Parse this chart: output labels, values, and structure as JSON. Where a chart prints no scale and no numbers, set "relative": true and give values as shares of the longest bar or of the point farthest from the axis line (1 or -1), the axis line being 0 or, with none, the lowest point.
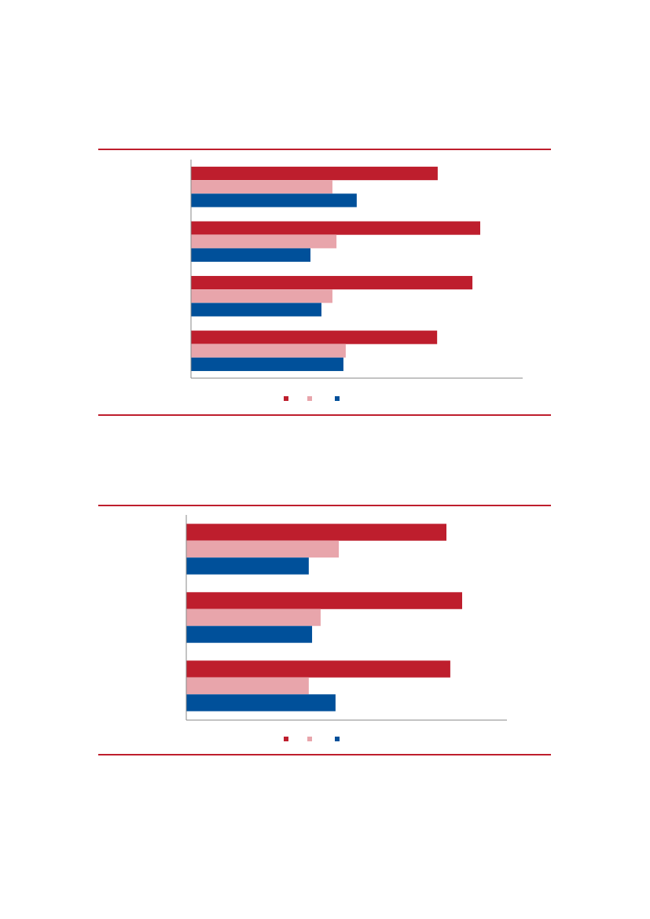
{
  "chart_data": [
    {
      "type": "bar",
      "orientation": "horizontal",
      "relative": true,
      "categories": [
        null,
        null,
        null,
        null
      ],
      "series": [
        {
          "color": "#be1e2d",
          "values": [
            0.853,
            1,
            0.973,
            0.851
          ]
        },
        {
          "color": "#e8a5ab",
          "values": [
            0.489,
            0.503,
            0.489,
            0.535
          ]
        },
        {
          "color": "#00509a",
          "values": [
            0.573,
            0.413,
            0.451,
            0.527
          ]
        }
      ]
    },
    {
      "type": "bar",
      "orientation": "horizontal",
      "relative": true,
      "categories": [
        null,
        null,
        null
      ],
      "series": [
        {
          "color": "#be1e2d",
          "values": [
            0.943,
            1,
            0.957
          ]
        },
        {
          "color": "#e8a5ab",
          "values": [
            0.553,
            0.487,
            0.444
          ]
        },
        {
          "color": "#00509a",
          "values": [
            0.444,
            0.456,
            0.541
          ]
        }
      ]
    }
  ]
}
